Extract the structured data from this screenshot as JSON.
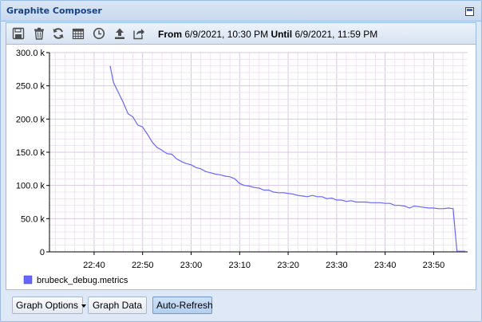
{
  "window": {
    "title": "Graphite Composer"
  },
  "toolbar": {
    "icons": [
      "save-icon",
      "delete-icon",
      "refresh-icon",
      "calendar-icon",
      "clock-icon",
      "upload-icon",
      "share-icon"
    ],
    "from_label": "From",
    "from_value": "6/9/2021, 10:30 PM",
    "until_label": "Until",
    "until_value": "6/9/2021, 11:59 PM"
  },
  "chart_data": {
    "type": "line",
    "xlabel": "",
    "ylabel": "",
    "x_ticks": [
      "22:40",
      "22:50",
      "23:00",
      "23:10",
      "23:20",
      "23:30",
      "23:40",
      "23:50"
    ],
    "x_tick_minutes": [
      40,
      50,
      60,
      70,
      80,
      90,
      100,
      110
    ],
    "y_ticks": [
      "0",
      "50.0 k",
      "100.0 k",
      "150.0 k",
      "200.0 k",
      "250.0 k",
      "300.0 k"
    ],
    "ylim": [
      0,
      300000
    ],
    "xlim_minutes": [
      30.8,
      117.0
    ],
    "grid": true,
    "legend_position": "bottom-left",
    "series": [
      {
        "name": "brubeck_debug.metrics",
        "color": "#6666ff",
        "x_minutes": [
          43.3,
          44.0,
          45.0,
          46.0,
          47.0,
          48.0,
          49.0,
          50.0,
          51.0,
          52.0,
          53.0,
          54.0,
          55.0,
          56.0,
          57.0,
          58.0,
          59.0,
          60.0,
          61.0,
          62.0,
          63.0,
          64.0,
          65.0,
          66.0,
          67.0,
          68.0,
          69.0,
          70.0,
          71.0,
          72.0,
          73.0,
          74.0,
          75.0,
          76.0,
          77.0,
          78.0,
          79.0,
          80.0,
          81.0,
          82.0,
          83.0,
          84.0,
          85.0,
          86.0,
          87.0,
          88.0,
          89.0,
          90.0,
          91.0,
          92.0,
          93.0,
          94.0,
          95.0,
          96.0,
          97.0,
          98.0,
          99.0,
          100.0,
          101.0,
          102.0,
          103.0,
          104.0,
          105.0,
          106.0,
          107.0,
          108.0,
          109.0,
          110.0,
          111.0,
          112.0,
          113.0,
          114.0,
          114.8,
          115.5,
          116.5
        ],
        "values": [
          280000,
          255000,
          240000,
          225000,
          208000,
          203000,
          191000,
          188000,
          177000,
          165000,
          157000,
          153000,
          148000,
          147000,
          140000,
          136000,
          133000,
          131000,
          127000,
          125000,
          121000,
          119000,
          117000,
          116000,
          114000,
          113000,
          110000,
          103000,
          100000,
          99000,
          97000,
          96000,
          93000,
          93000,
          90000,
          89000,
          89000,
          88000,
          87000,
          85000,
          84000,
          83000,
          85000,
          83000,
          83000,
          80000,
          81000,
          78000,
          78000,
          76000,
          77000,
          75000,
          75000,
          75000,
          74000,
          74000,
          74000,
          73000,
          73000,
          70000,
          70000,
          69000,
          66000,
          69000,
          68000,
          67000,
          66000,
          66000,
          65000,
          65000,
          66000,
          65000,
          1000,
          1000,
          1000
        ]
      }
    ]
  },
  "actions": {
    "graph_options": "Graph Options",
    "graph_data": "Graph Data",
    "auto_refresh": "Auto-Refresh"
  }
}
